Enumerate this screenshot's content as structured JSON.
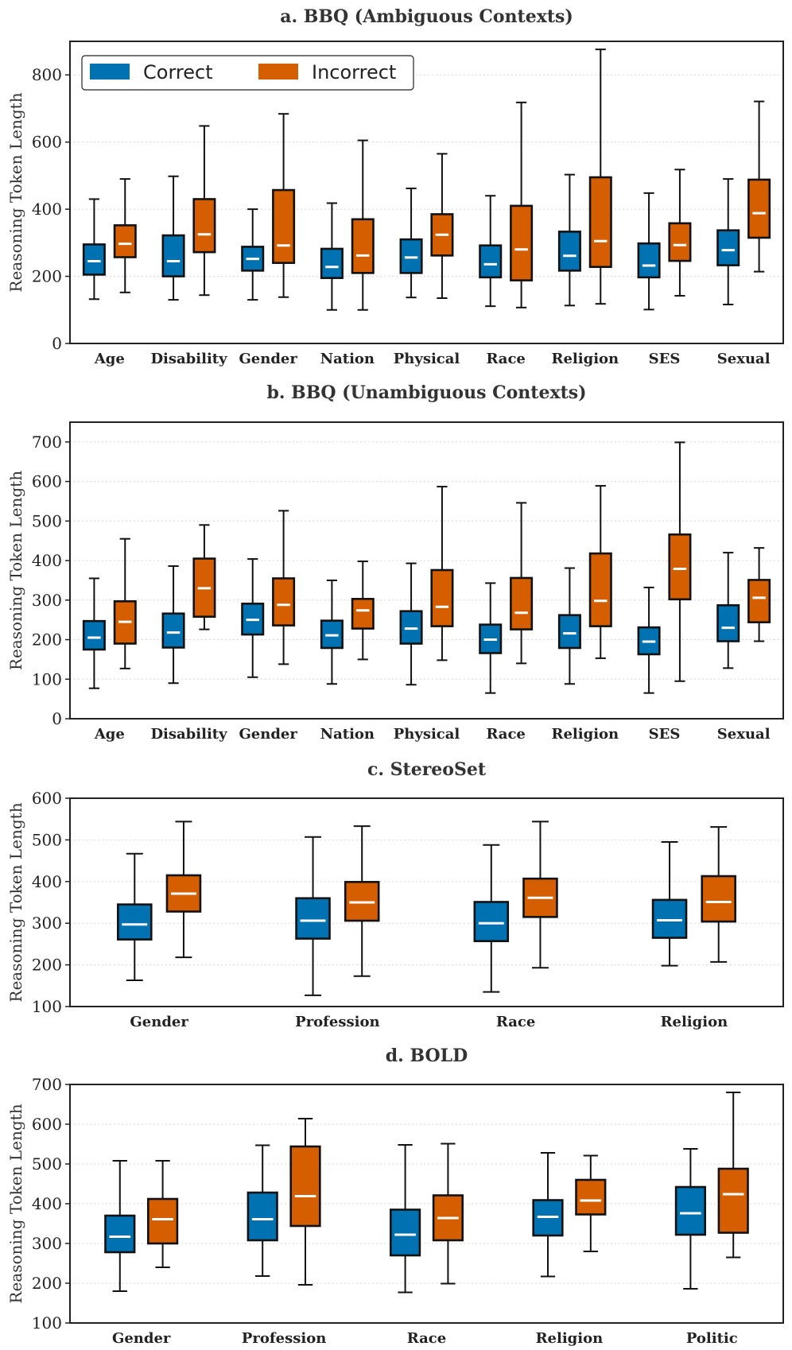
{
  "legend": {
    "series": [
      {
        "name": "Correct",
        "color": "#0072B2"
      },
      {
        "name": "Incorrect",
        "color": "#D55E00"
      }
    ]
  },
  "chart_data": [
    {
      "type": "box",
      "title": "a. BBQ (Ambiguous Contexts)",
      "ylabel": "Reasoning Token Length",
      "ylim": [
        0,
        900
      ],
      "yticks": [
        0,
        200,
        400,
        600,
        800
      ],
      "categories": [
        "Age",
        "Disability",
        "Gender",
        "Nation",
        "Physical",
        "Race",
        "Religion",
        "SES",
        "Sexual"
      ],
      "series": [
        {
          "name": "Correct",
          "boxes": [
            {
              "whisker_low": 132,
              "q1": 205,
              "median": 245,
              "q3": 295,
              "whisker_high": 430
            },
            {
              "whisker_low": 130,
              "q1": 200,
              "median": 245,
              "q3": 322,
              "whisker_high": 498
            },
            {
              "whisker_low": 130,
              "q1": 217,
              "median": 252,
              "q3": 288,
              "whisker_high": 400
            },
            {
              "whisker_low": 100,
              "q1": 195,
              "median": 228,
              "q3": 282,
              "whisker_high": 418
            },
            {
              "whisker_low": 137,
              "q1": 210,
              "median": 256,
              "q3": 310,
              "whisker_high": 462
            },
            {
              "whisker_low": 111,
              "q1": 197,
              "median": 236,
              "q3": 292,
              "whisker_high": 440
            },
            {
              "whisker_low": 113,
              "q1": 217,
              "median": 261,
              "q3": 333,
              "whisker_high": 503
            },
            {
              "whisker_low": 101,
              "q1": 197,
              "median": 232,
              "q3": 298,
              "whisker_high": 448
            },
            {
              "whisker_low": 116,
              "q1": 233,
              "median": 278,
              "q3": 337,
              "whisker_high": 490
            }
          ]
        },
        {
          "name": "Incorrect",
          "boxes": [
            {
              "whisker_low": 152,
              "q1": 257,
              "median": 297,
              "q3": 352,
              "whisker_high": 490
            },
            {
              "whisker_low": 144,
              "q1": 272,
              "median": 325,
              "q3": 430,
              "whisker_high": 648
            },
            {
              "whisker_low": 138,
              "q1": 240,
              "median": 292,
              "q3": 457,
              "whisker_high": 684
            },
            {
              "whisker_low": 100,
              "q1": 210,
              "median": 262,
              "q3": 370,
              "whisker_high": 605
            },
            {
              "whisker_low": 135,
              "q1": 262,
              "median": 324,
              "q3": 385,
              "whisker_high": 565
            },
            {
              "whisker_low": 107,
              "q1": 188,
              "median": 280,
              "q3": 410,
              "whisker_high": 718
            },
            {
              "whisker_low": 118,
              "q1": 228,
              "median": 305,
              "q3": 495,
              "whisker_high": 876
            },
            {
              "whisker_low": 142,
              "q1": 246,
              "median": 293,
              "q3": 358,
              "whisker_high": 518
            },
            {
              "whisker_low": 214,
              "q1": 315,
              "median": 388,
              "q3": 488,
              "whisker_high": 721
            }
          ]
        }
      ]
    },
    {
      "type": "box",
      "title": "b. BBQ (Unambiguous Contexts)",
      "ylabel": "Reasoning Token Length",
      "ylim": [
        0,
        750
      ],
      "yticks": [
        0,
        100,
        200,
        300,
        400,
        500,
        600,
        700
      ],
      "categories": [
        "Age",
        "Disability",
        "Gender",
        "Nation",
        "Physical",
        "Race",
        "Religion",
        "SES",
        "Sexual"
      ],
      "series": [
        {
          "name": "Correct",
          "boxes": [
            {
              "whisker_low": 77,
              "q1": 175,
              "median": 205,
              "q3": 247,
              "whisker_high": 355
            },
            {
              "whisker_low": 90,
              "q1": 180,
              "median": 218,
              "q3": 266,
              "whisker_high": 386
            },
            {
              "whisker_low": 105,
              "q1": 213,
              "median": 250,
              "q3": 291,
              "whisker_high": 404
            },
            {
              "whisker_low": 88,
              "q1": 179,
              "median": 211,
              "q3": 248,
              "whisker_high": 350
            },
            {
              "whisker_low": 86,
              "q1": 190,
              "median": 228,
              "q3": 272,
              "whisker_high": 393
            },
            {
              "whisker_low": 65,
              "q1": 166,
              "median": 200,
              "q3": 238,
              "whisker_high": 343
            },
            {
              "whisker_low": 88,
              "q1": 179,
              "median": 216,
              "q3": 262,
              "whisker_high": 381
            },
            {
              "whisker_low": 65,
              "q1": 163,
              "median": 195,
              "q3": 231,
              "whisker_high": 332
            },
            {
              "whisker_low": 128,
              "q1": 196,
              "median": 230,
              "q3": 287,
              "whisker_high": 420
            }
          ]
        },
        {
          "name": "Incorrect",
          "boxes": [
            {
              "whisker_low": 127,
              "q1": 190,
              "median": 245,
              "q3": 297,
              "whisker_high": 455
            },
            {
              "whisker_low": 226,
              "q1": 258,
              "median": 330,
              "q3": 405,
              "whisker_high": 490
            },
            {
              "whisker_low": 138,
              "q1": 236,
              "median": 288,
              "q3": 355,
              "whisker_high": 526
            },
            {
              "whisker_low": 150,
              "q1": 228,
              "median": 274,
              "q3": 303,
              "whisker_high": 398
            },
            {
              "whisker_low": 148,
              "q1": 234,
              "median": 283,
              "q3": 376,
              "whisker_high": 587
            },
            {
              "whisker_low": 140,
              "q1": 226,
              "median": 268,
              "q3": 356,
              "whisker_high": 546
            },
            {
              "whisker_low": 153,
              "q1": 234,
              "median": 298,
              "q3": 418,
              "whisker_high": 589
            },
            {
              "whisker_low": 95,
              "q1": 302,
              "median": 379,
              "q3": 466,
              "whisker_high": 699
            },
            {
              "whisker_low": 196,
              "q1": 244,
              "median": 306,
              "q3": 351,
              "whisker_high": 432
            }
          ]
        }
      ]
    },
    {
      "type": "box",
      "title": "c. StereoSet",
      "ylabel": "Reasoning Token Length",
      "ylim": [
        100,
        600
      ],
      "yticks": [
        100,
        200,
        300,
        400,
        500,
        600
      ],
      "categories": [
        "Gender",
        "Profession",
        "Race",
        "Religion"
      ],
      "series": [
        {
          "name": "Correct",
          "boxes": [
            {
              "whisker_low": 163,
              "q1": 261,
              "median": 297,
              "q3": 345,
              "whisker_high": 467
            },
            {
              "whisker_low": 127,
              "q1": 263,
              "median": 306,
              "q3": 360,
              "whisker_high": 507
            },
            {
              "whisker_low": 135,
              "q1": 257,
              "median": 300,
              "q3": 351,
              "whisker_high": 488
            },
            {
              "whisker_low": 198,
              "q1": 265,
              "median": 307,
              "q3": 356,
              "whisker_high": 495
            }
          ]
        },
        {
          "name": "Incorrect",
          "boxes": [
            {
              "whisker_low": 218,
              "q1": 328,
              "median": 371,
              "q3": 415,
              "whisker_high": 544
            },
            {
              "whisker_low": 173,
              "q1": 306,
              "median": 350,
              "q3": 399,
              "whisker_high": 533
            },
            {
              "whisker_low": 193,
              "q1": 315,
              "median": 361,
              "q3": 407,
              "whisker_high": 544
            },
            {
              "whisker_low": 207,
              "q1": 304,
              "median": 351,
              "q3": 413,
              "whisker_high": 531
            }
          ]
        }
      ]
    },
    {
      "type": "box",
      "title": "d. BOLD",
      "ylabel": "Reasoning Token Length",
      "ylim": [
        100,
        700
      ],
      "yticks": [
        100,
        200,
        300,
        400,
        500,
        600,
        700
      ],
      "categories": [
        "Gender",
        "Profession",
        "Race",
        "Religion",
        "Politic"
      ],
      "series": [
        {
          "name": "Correct",
          "boxes": [
            {
              "whisker_low": 180,
              "q1": 278,
              "median": 317,
              "q3": 370,
              "whisker_high": 508
            },
            {
              "whisker_low": 218,
              "q1": 308,
              "median": 361,
              "q3": 428,
              "whisker_high": 547
            },
            {
              "whisker_low": 177,
              "q1": 270,
              "median": 322,
              "q3": 385,
              "whisker_high": 548
            },
            {
              "whisker_low": 217,
              "q1": 320,
              "median": 367,
              "q3": 409,
              "whisker_high": 528
            },
            {
              "whisker_low": 186,
              "q1": 322,
              "median": 376,
              "q3": 442,
              "whisker_high": 538
            }
          ]
        },
        {
          "name": "Incorrect",
          "boxes": [
            {
              "whisker_low": 240,
              "q1": 300,
              "median": 361,
              "q3": 412,
              "whisker_high": 508
            },
            {
              "whisker_low": 196,
              "q1": 344,
              "median": 419,
              "q3": 544,
              "whisker_high": 614
            },
            {
              "whisker_low": 199,
              "q1": 308,
              "median": 364,
              "q3": 421,
              "whisker_high": 551
            },
            {
              "whisker_low": 280,
              "q1": 373,
              "median": 408,
              "q3": 460,
              "whisker_high": 521
            },
            {
              "whisker_low": 265,
              "q1": 327,
              "median": 424,
              "q3": 488,
              "whisker_high": 680
            }
          ]
        }
      ]
    }
  ]
}
